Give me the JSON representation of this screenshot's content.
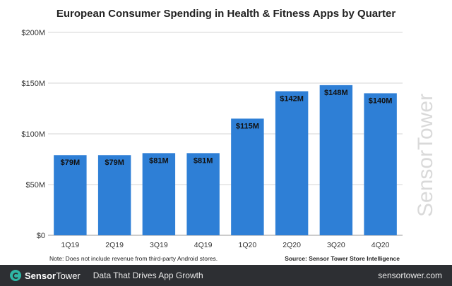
{
  "chart_data": {
    "type": "bar",
    "title": "European Consumer Spending in Health & Fitness Apps by Quarter",
    "categories": [
      "1Q19",
      "2Q19",
      "3Q19",
      "4Q19",
      "1Q20",
      "2Q20",
      "3Q20",
      "4Q20"
    ],
    "values": [
      79,
      79,
      81,
      81,
      115,
      142,
      148,
      140
    ],
    "data_labels": [
      "$79M",
      "$79M",
      "$81M",
      "$81M",
      "$115M",
      "$142M",
      "$148M",
      "$140M"
    ],
    "yticks": [
      0,
      50,
      100,
      150,
      200
    ],
    "ytick_labels": [
      "$0",
      "$50M",
      "$100M",
      "$150M",
      "$200M"
    ],
    "ylim": [
      0,
      200
    ],
    "xlabel": "",
    "ylabel": "",
    "grid": true,
    "legend": "none",
    "bar_color": "#2e7fd6",
    "note": "Note: Does not include revenue from third-party Android stores.",
    "source": "Source: Sensor Tower Store Intelligence"
  },
  "watermark": "SensorTower",
  "footer": {
    "brand_part1": "Sensor",
    "brand_part2": "Tower",
    "tagline": "Data That Drives App Growth",
    "url": "sensortower.com",
    "logo_icon": "sensortower-logo-icon",
    "accent_color": "#2fb7a5"
  }
}
